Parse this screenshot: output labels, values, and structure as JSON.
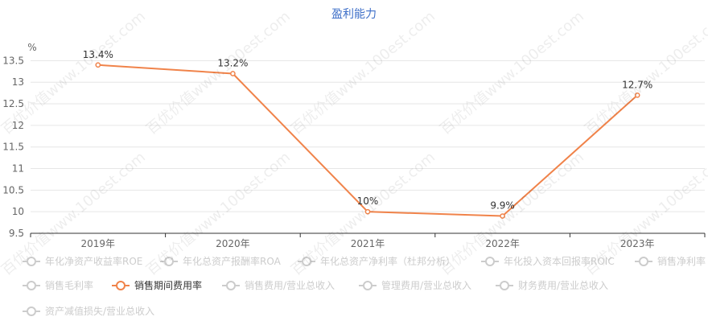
{
  "chart_data": {
    "type": "line",
    "title": "盈利能力",
    "ylabel": "%",
    "categories": [
      "2019年",
      "2020年",
      "2021年",
      "2022年",
      "2023年"
    ],
    "yticks": [
      "9.5",
      "10",
      "10.5",
      "11",
      "11.5",
      "12",
      "12.5",
      "13",
      "13.5"
    ],
    "ylim": [
      9.5,
      13.75
    ],
    "grid": true,
    "series": [
      {
        "name": "销售期间费用率",
        "values": [
          13.4,
          13.2,
          10,
          9.9,
          12.7
        ],
        "labels": [
          "13.4%",
          "13.2%",
          "10%",
          "9.9%",
          "12.7%"
        ],
        "color": "#f0834a"
      }
    ],
    "legend": {
      "placement": "bottom",
      "items": [
        {
          "name": "年化净资产收益率ROE",
          "active": false
        },
        {
          "name": "年化总资产报酬率ROA",
          "active": false
        },
        {
          "name": "年化总资产净利率（杜邦分析）",
          "active": false
        },
        {
          "name": "年化投入资本回报率ROIC",
          "active": false
        },
        {
          "name": "销售净利率",
          "active": false
        },
        {
          "name": "销售毛利率",
          "active": false
        },
        {
          "name": "销售期间费用率",
          "active": true
        },
        {
          "name": "销售费用/营业总收入",
          "active": false
        },
        {
          "name": "管理费用/营业总收入",
          "active": false
        },
        {
          "name": "财务费用/营业总收入",
          "active": false
        },
        {
          "name": "资产减值损失/营业总收入",
          "active": false
        }
      ]
    }
  },
  "watermark": "百优价值www.100est.com",
  "colors": {
    "title": "#3e6fc8",
    "line": "#f0834a",
    "grid": "#e6e6e6",
    "axis": "#666666",
    "inactive": "#cccccc"
  }
}
